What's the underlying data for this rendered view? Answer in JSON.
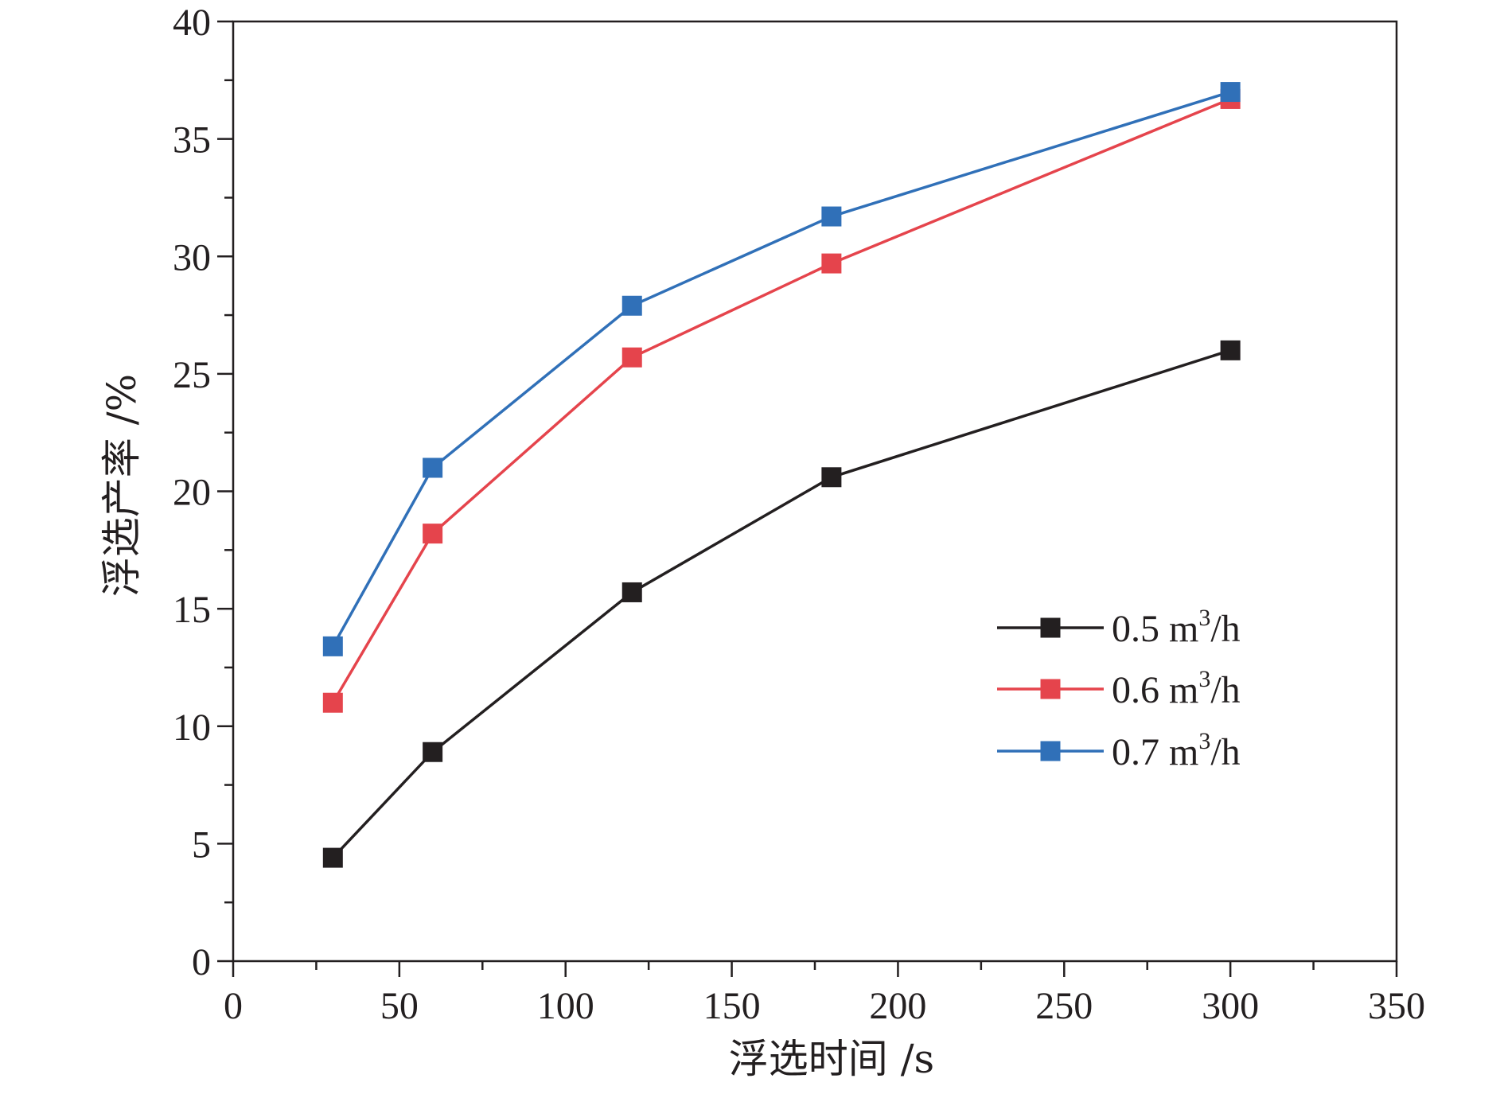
{
  "chart_data": {
    "type": "line",
    "xlabel": "浮选时间  /s",
    "ylabel": "浮选产率  /%",
    "xlim": [
      0,
      350
    ],
    "ylim": [
      0,
      40
    ],
    "x_ticks": [
      0,
      50,
      100,
      150,
      200,
      250,
      300,
      350
    ],
    "y_ticks": [
      0,
      5,
      10,
      15,
      20,
      25,
      30,
      35,
      40
    ],
    "x_ticks_labels": [
      "0",
      "50",
      "100",
      "150",
      "200",
      "250",
      "300",
      "350"
    ],
    "y_ticks_labels": [
      "0",
      "5",
      "10",
      "15",
      "20",
      "25",
      "30",
      "35",
      "40"
    ],
    "x": [
      30,
      60,
      120,
      180,
      300
    ],
    "grid": false,
    "legend_position": "right-middle",
    "marker": "square",
    "series": [
      {
        "name_base": "0.5 m",
        "name_sup": "3",
        "name_tail": "/h",
        "name": "0.5 m3/h",
        "color": "#231f20",
        "values": [
          4.4,
          8.9,
          15.7,
          20.6,
          26.0
        ]
      },
      {
        "name_base": "0.6 m",
        "name_sup": "3",
        "name_tail": "/h",
        "name": "0.6 m3/h",
        "color": "#e5444c",
        "values": [
          11.0,
          18.2,
          25.7,
          29.7,
          36.7
        ]
      },
      {
        "name_base": "0.7 m",
        "name_sup": "3",
        "name_tail": "/h",
        "name": "0.7 m3/h",
        "color": "#3070b8",
        "values": [
          13.4,
          21.0,
          27.9,
          31.7,
          37.0
        ]
      }
    ]
  }
}
